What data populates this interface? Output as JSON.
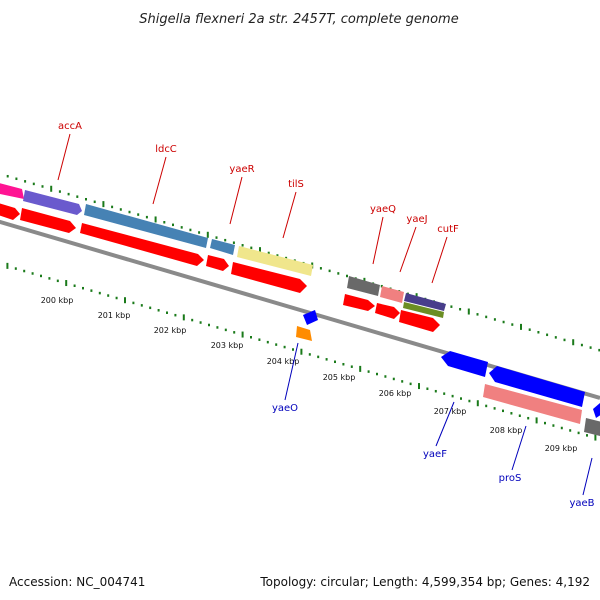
{
  "title": "Shigella flexneri 2a str. 2457T, complete genome",
  "footer": {
    "accession": "Accession: NC_004741",
    "summary": "Topology: circular; Length: 4,599,354 bp; Genes: 4,192"
  },
  "colors": {
    "backbone": "#888888",
    "forward_label": "#cc0000",
    "reverse_label": "#0000bb",
    "tick": "#1a7a1a",
    "cds": "#ff0000",
    "blue_gene": "#0000ff",
    "pink_gene": "#f08080",
    "steel_gene": "#4682b4",
    "purple_gene": "#6a5acd",
    "khaki_gene": "#f0e68c",
    "magenta_gene": "#ff1493",
    "orange_gene": "#ff8c00",
    "gray_gene": "#696969",
    "olive_gene": "#6b8e23"
  },
  "ticks": [
    "200 kbp",
    "201 kbp",
    "202 kbp",
    "203 kbp",
    "204 kbp",
    "205 kbp",
    "206 kbp",
    "207 kbp",
    "208 kbp",
    "209 kbp"
  ],
  "forward_genes": [
    "accA",
    "ldcC",
    "yaeR",
    "tilS",
    "yaeQ",
    "yaeJ",
    "cutF"
  ],
  "reverse_genes": [
    "yaeO",
    "yaeF",
    "proS",
    "yaeB"
  ]
}
